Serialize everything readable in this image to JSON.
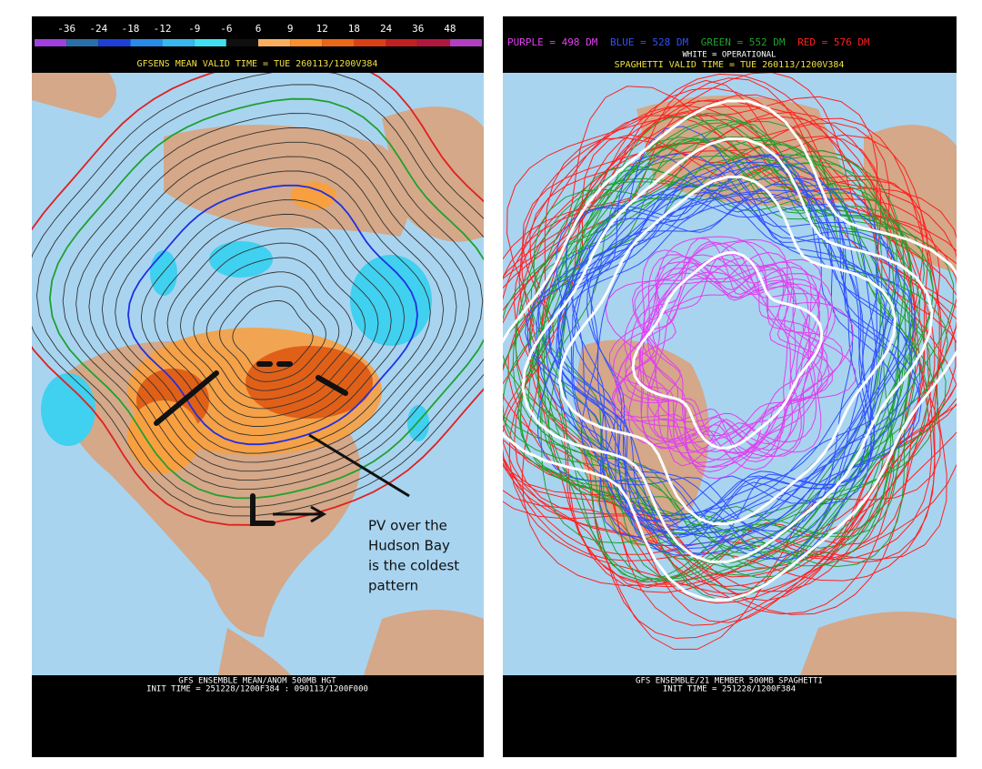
{
  "left_panel": {
    "colorbar": {
      "ticks": [
        -36,
        -24,
        -18,
        -12,
        -9,
        -6,
        6,
        9,
        12,
        18,
        24,
        36,
        48
      ],
      "colors": [
        "#a040e0",
        "#2a6fa8",
        "#1e3fd8",
        "#2a8ae8",
        "#38b8f0",
        "#40e0f0",
        "#101010",
        "#f8b060",
        "#f89030",
        "#e86818",
        "#d84018",
        "#c02020",
        "#b01840",
        "#b040c0"
      ]
    },
    "header": "GFSENS MEAN VALID TIME = TUE 260113/1200V384",
    "footer": [
      "GFS ENSEMBLE MEAN/ANOM 500MB HGT",
      "INIT TIME = 251228/1200F384 : 090113/1200F000"
    ],
    "annotation": [
      "PV over the",
      "Hudson Bay",
      "is the coldest",
      "pattern"
    ]
  },
  "right_panel": {
    "legend": [
      {
        "label": "PURPLE = 498 DM",
        "color": "#e040f0"
      },
      {
        "label": "BLUE = 528 DM",
        "color": "#3050ff"
      },
      {
        "label": "GREEN = 552 DM",
        "color": "#20a030"
      },
      {
        "label": "RED = 576 DM",
        "color": "#ff2020"
      }
    ],
    "header": [
      "WHITE = OPERATIONAL",
      "SPAGHETTI VALID TIME = TUE 260113/1200V384"
    ],
    "footer": [
      "GFS ENSEMBLE/21 MEMBER 500MB SPAGHETTI",
      "INIT TIME = 251228/1200F384"
    ]
  }
}
